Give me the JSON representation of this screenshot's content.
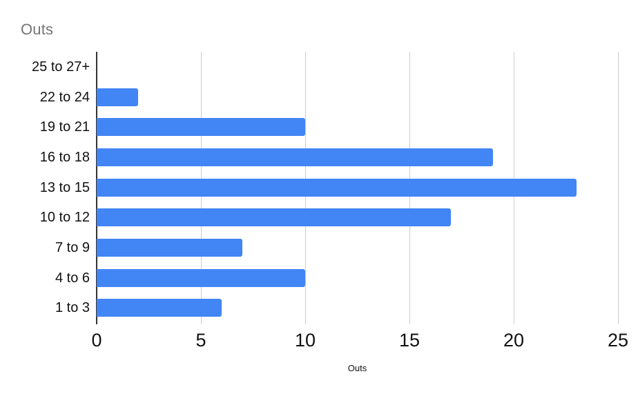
{
  "page": {
    "background": "#ffffff"
  },
  "chart_data": {
    "type": "bar",
    "orientation": "horizontal",
    "title": "Outs",
    "xlabel": "Outs",
    "ylabel": "",
    "categories": [
      "25 to 27+",
      "22 to 24",
      "19 to 21",
      "16 to 18",
      "13 to 15",
      "10 to 12",
      "7 to 9",
      "4 to 6",
      "1 to 3"
    ],
    "values": [
      0,
      2,
      10,
      19,
      23,
      17,
      7,
      10,
      6
    ],
    "x_ticks": [
      0,
      5,
      10,
      15,
      20,
      25
    ],
    "xlim": [
      0,
      25
    ],
    "grid": true,
    "legend_position": "none",
    "colors": {
      "bar": "#4285f4",
      "gridline": "#cccccc",
      "zero_axis_line": "#333333",
      "title_text": "#757575",
      "axis_label_text": "#111111"
    }
  }
}
